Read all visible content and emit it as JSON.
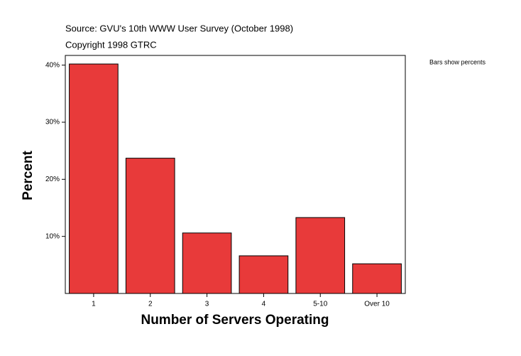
{
  "chart_data": {
    "type": "bar",
    "source": "Source: GVU's 10th WWW User Survey (October 1998)",
    "copyright": "Copyright 1998 GTRC",
    "note": "Bars show percents",
    "x_label": "Number of Servers Operating",
    "y_label": "Percent",
    "categories": [
      "1",
      "2",
      "3",
      "4",
      "5-10",
      "Over 10"
    ],
    "values": [
      40.2,
      23.7,
      10.6,
      6.6,
      13.3,
      5.2
    ],
    "color": "#e83a3a",
    "ylim": [
      0,
      41.7
    ],
    "yticks": [
      {
        "value": 10,
        "label": "10%"
      },
      {
        "value": 20,
        "label": "20%"
      },
      {
        "value": 30,
        "label": "30%"
      },
      {
        "value": 40,
        "label": "40%"
      }
    ]
  }
}
